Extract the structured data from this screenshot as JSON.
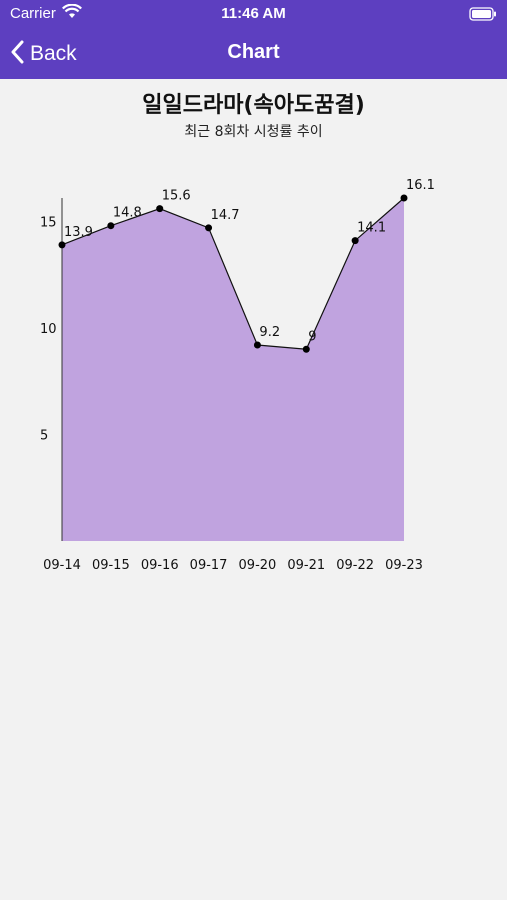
{
  "status": {
    "carrier": "Carrier",
    "time": "11:46 AM"
  },
  "nav": {
    "back_label": "Back",
    "title": "Chart"
  },
  "chart_data": {
    "type": "area",
    "title": "일일드라마(속아도꿈결)",
    "subtitle": "최근 8회차 시청률 추이",
    "categories": [
      "09-14",
      "09-15",
      "09-16",
      "09-17",
      "09-20",
      "09-21",
      "09-22",
      "09-23"
    ],
    "values": [
      13.9,
      14.8,
      15.6,
      14.7,
      9.2,
      9,
      14.1,
      16.1
    ],
    "value_labels": [
      "13.9",
      "14.8",
      "15.6",
      "14.7",
      "9.2",
      "9",
      "14.1",
      "16.1"
    ],
    "yticks": [
      5,
      10,
      15
    ],
    "ylim": [
      0,
      16.1
    ],
    "grid": false,
    "legend": "none",
    "fill_color": "#c0a3df",
    "line_color": "#111111",
    "colors": {
      "bar_bg": "#5d3fc0",
      "page_bg": "#f2f2f2"
    }
  }
}
